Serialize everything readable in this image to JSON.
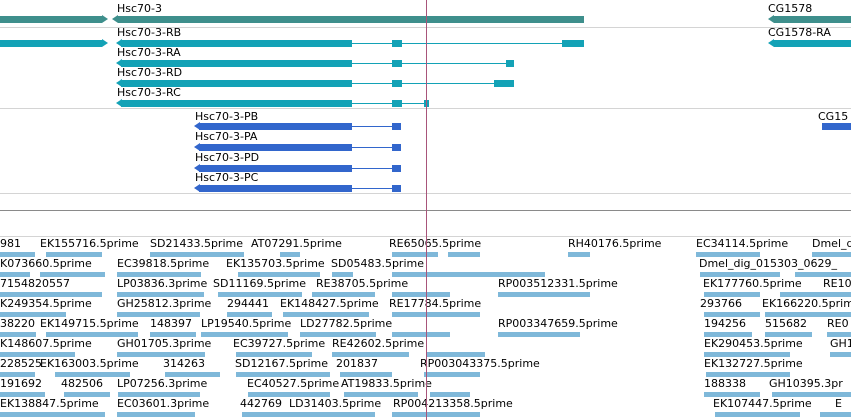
{
  "colors": {
    "gene": "#3e8f8c",
    "transcript_a": "#13a2b6",
    "transcript_b": "#3266cc",
    "est": "#7fb8d9",
    "cursor": "#a8557a",
    "divider": "#d4d4d4"
  },
  "genes": [
    {
      "label": "Hsc70-3"
    },
    {
      "label": "CG1578"
    }
  ],
  "transcripts_a": [
    {
      "label": "Hsc70-3-RB"
    },
    {
      "label": "Hsc70-3-RA"
    },
    {
      "label": "Hsc70-3-RD"
    },
    {
      "label": "Hsc70-3-RC"
    },
    {
      "label": "CG1578-RA"
    }
  ],
  "transcripts_b": [
    {
      "label": "Hsc70-3-PB"
    },
    {
      "label": "Hsc70-3-PA"
    },
    {
      "label": "Hsc70-3-PD"
    },
    {
      "label": "Hsc70-3-PC"
    },
    {
      "label": "CG15"
    }
  ],
  "est_rows": [
    [
      "981",
      "EK155716.5prime",
      "SD21433.5prime",
      "AT07291.5prime",
      "RE65065.5prime",
      "RH40176.5prime",
      "EC34114.5prime",
      "Dmel_d"
    ],
    [
      "K073660.5prime",
      "EC39818.5prime",
      "EK135703.5prime",
      "SD05483.5prime",
      "Dmel_dig_015303_0629_"
    ],
    [
      "7154820557",
      "LP03836.3prime",
      "SD11169.5prime",
      "RE38705.5prime",
      "RP003512331.5prime",
      "EK177760.5prime",
      "RE10"
    ],
    [
      "K249354.5prime",
      "GH25812.3prime",
      "294441",
      "EK148427.5prime",
      "RE17784.5prime",
      "293766",
      "EK166220.5prime"
    ],
    [
      "38220",
      "EK149715.5prime",
      "148397",
      "LP19540.5prime",
      "LD27782.5prime",
      "RP003347659.5prime",
      "194256",
      "515682",
      "RE0"
    ],
    [
      "K148607.5prime",
      "GH01705.3prime",
      "EC39727.5prime",
      "RE42602.5prime",
      "EK290453.5prime",
      "GH1"
    ],
    [
      "228525",
      "EK163003.5prime",
      "314263",
      "SD12167.5prime",
      "201837",
      "RP003043375.5prime",
      "EK132727.5prime"
    ],
    [
      "191692",
      "482506",
      "LP07256.3prime",
      "EC40527.5prime",
      "AT19833.5prime",
      "188338",
      "GH10395.3pr"
    ],
    [
      "EK138847.5prime",
      "EC03601.3prime",
      "442769",
      "LD31403.5prime",
      "RP004213358.5prime",
      "EK107447.5prime",
      "E"
    ]
  ]
}
